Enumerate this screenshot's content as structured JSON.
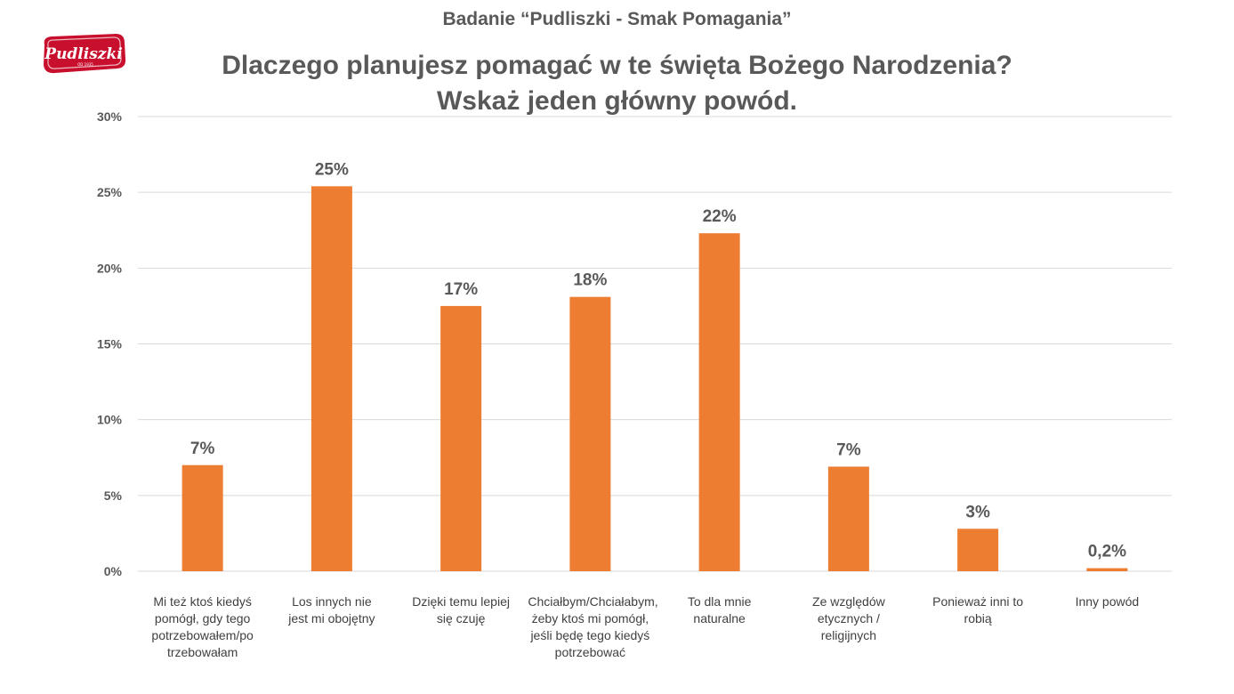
{
  "header": {
    "survey_title": "Badanie “Pudliszki - Smak Pomagania”",
    "logo_text": "Pudliszki",
    "logo_tagline": "OD 1935"
  },
  "colors": {
    "bar": "#ED7D31",
    "grid": "#D9D9D9",
    "text": "#595959",
    "logo_red": "#C8102E"
  },
  "chart_data": {
    "type": "bar",
    "title_lines": [
      "Dlaczego planujesz pomagać w te święta Bożego Narodzenia?",
      "Wskaż jeden główny powód."
    ],
    "xlabel": "",
    "ylabel": "",
    "ylim": [
      0,
      30
    ],
    "yticks": [
      "0%",
      "5%",
      "10%",
      "15%",
      "20%",
      "25%",
      "30%"
    ],
    "ytick_values": [
      0,
      5,
      10,
      15,
      20,
      25,
      30
    ],
    "grid": true,
    "legend": "none",
    "categories": [
      "Mi też ktoś kiedyś pomógł, gdy tego potrzebowałem/po trzebowałam",
      "Los innych nie jest mi obojętny",
      "Dzięki temu lepiej się czuję",
      "Chciałbym/Chciałabym, żeby ktoś mi pomógł, jeśli będę tego kiedyś potrzebować",
      "To dla mnie naturalne",
      "Ze względów etycznych / religijnych",
      "Ponieważ inni to robią",
      "Inny powód"
    ],
    "category_lines": [
      [
        "Mi też ktoś kiedyś",
        "pomógł, gdy tego",
        "potrzebowałem/po",
        "trzebowałam"
      ],
      [
        "Los innych nie",
        "jest mi obojętny"
      ],
      [
        "Dzięki temu lepiej",
        "się czuję"
      ],
      [
        "Chciałbym/Chciałabym,",
        "żeby ktoś mi pomógł,",
        "jeśli będę tego kiedyś",
        "potrzebować"
      ],
      [
        "To dla mnie",
        "naturalne"
      ],
      [
        "Ze względów",
        "etycznych /",
        "religijnych"
      ],
      [
        "Ponieważ inni to",
        "robią"
      ],
      [
        "Inny powód"
      ]
    ],
    "values": [
      7.0,
      25.4,
      17.5,
      18.1,
      22.3,
      6.9,
      2.8,
      0.2
    ],
    "data_labels": [
      "7%",
      "25%",
      "17%",
      "18%",
      "22%",
      "7%",
      "3%",
      "0,2%"
    ]
  }
}
